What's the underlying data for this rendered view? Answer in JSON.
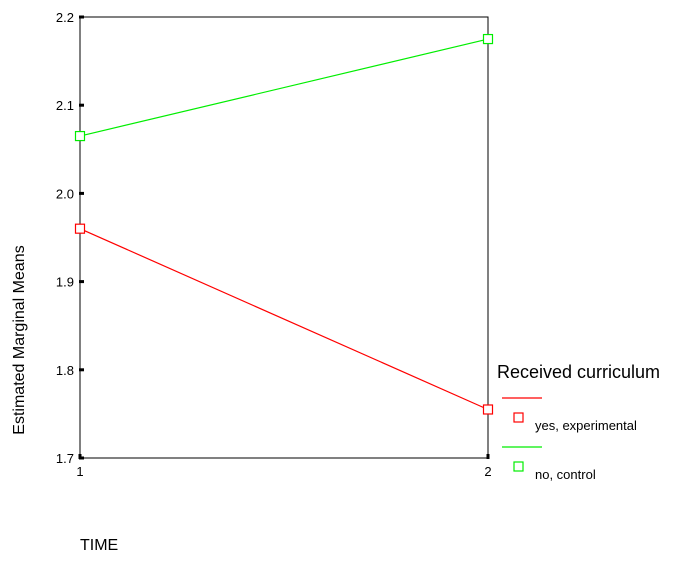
{
  "chart_data": {
    "type": "line",
    "title": "",
    "xlabel": "TIME",
    "ylabel": "Estimated Marginal Means",
    "categories": [
      "1",
      "2"
    ],
    "x": [
      1,
      2
    ],
    "xlim": [
      1,
      2
    ],
    "ylim": [
      1.7,
      2.2
    ],
    "yticks": [
      "1.7",
      "1.8",
      "1.9",
      "2.0",
      "2.1",
      "2.2"
    ],
    "grid": false,
    "legend": {
      "title": "Received curriculum",
      "placement": "right"
    },
    "series": [
      {
        "name": "yes, experimental",
        "color": "#ff0000",
        "values": [
          1.96,
          1.755
        ],
        "marker": "square-open"
      },
      {
        "name": "no, control",
        "color": "#00ee00",
        "values": [
          2.065,
          2.175
        ],
        "marker": "square-open"
      }
    ]
  }
}
